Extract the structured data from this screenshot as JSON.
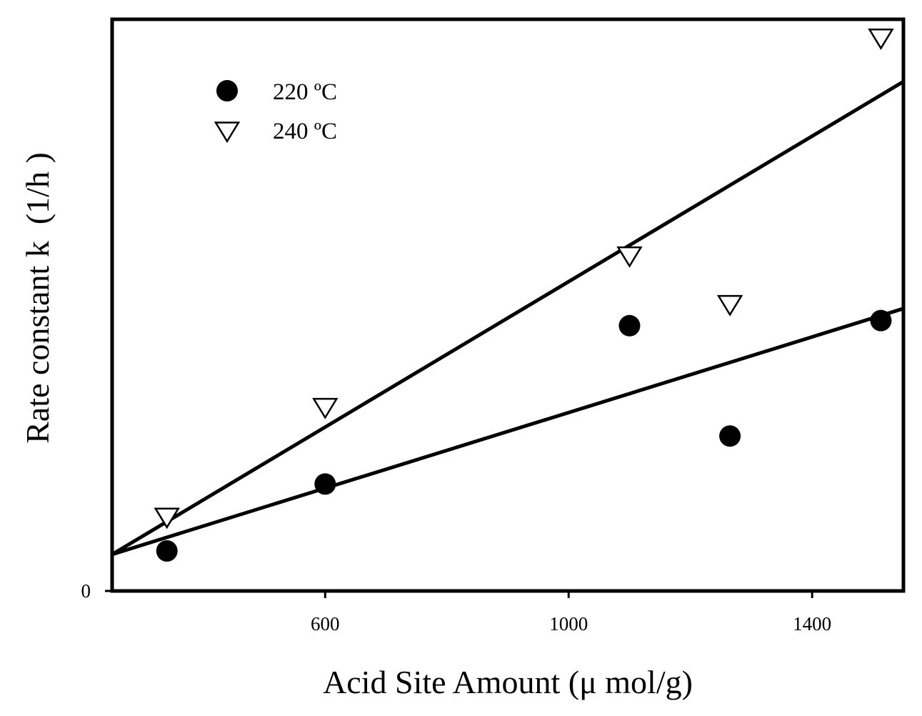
{
  "chart_data": {
    "type": "scatter",
    "title": "",
    "xlabel": "Acid Site Amount (μ mol/g)",
    "ylabel": "Rate constant k  (1/h )",
    "xlim": [
      250,
      1550
    ],
    "ylim": [
      0,
      100
    ],
    "x_ticks": [
      600,
      1000,
      1400
    ],
    "y_ticks": [
      0
    ],
    "x_tick_labels": [
      "600",
      "1000",
      "1400"
    ],
    "y_tick_labels": [
      "0"
    ],
    "grid": false,
    "legend_position": "top-left",
    "series": [
      {
        "name": "220 ºC",
        "marker": "filled-circle",
        "color": "#000000",
        "points": [
          [
            340,
            7
          ],
          [
            600,
            18.7
          ],
          [
            1100,
            46.4
          ],
          [
            1265,
            27.1
          ],
          [
            1513,
            47.3
          ]
        ],
        "fit_line": [
          [
            250,
            6.4
          ],
          [
            1550,
            49.4
          ]
        ]
      },
      {
        "name": "240 ºC",
        "marker": "open-triangle-down",
        "color": "#000000",
        "points": [
          [
            340,
            13.1
          ],
          [
            600,
            32.3
          ],
          [
            1100,
            58.8
          ],
          [
            1265,
            50.3
          ],
          [
            1513,
            96.9
          ]
        ],
        "fit_line": [
          [
            250,
            6.4
          ],
          [
            1550,
            89.1
          ]
        ]
      }
    ]
  }
}
